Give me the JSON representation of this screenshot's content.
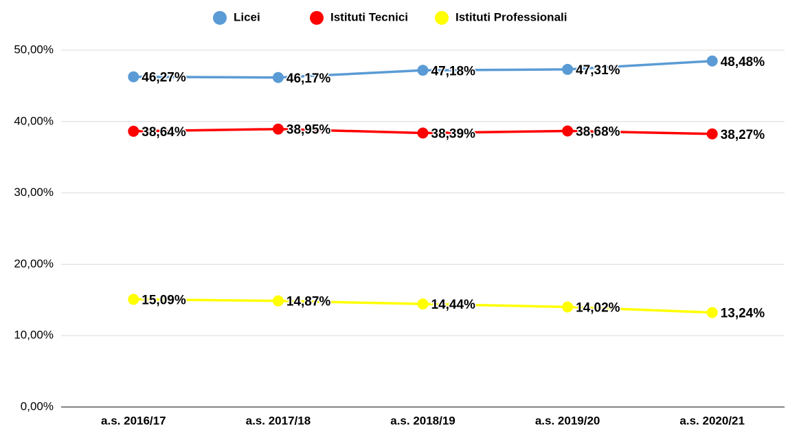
{
  "chart_data": {
    "type": "line",
    "categories": [
      "a.s. 2016/17",
      "a.s. 2017/18",
      "a.s. 2018/19",
      "a.s. 2019/20",
      "a.s. 2020/21"
    ],
    "series": [
      {
        "name": "Licei",
        "color": "#5b9bd5",
        "values": [
          46.27,
          46.17,
          47.18,
          47.31,
          48.48
        ],
        "value_labels": [
          "46,27%",
          "46,17%",
          "47,18%",
          "47,31%",
          "48,48%"
        ]
      },
      {
        "name": "Istituti Tecnici",
        "color": "#ff0000",
        "values": [
          38.64,
          38.95,
          38.39,
          38.68,
          38.27
        ],
        "value_labels": [
          "38,64%",
          "38,95%",
          "38,39%",
          "38,68%",
          "38,27%"
        ]
      },
      {
        "name": "Istituti Professionali",
        "color": "#ffff00",
        "values": [
          15.09,
          14.87,
          14.44,
          14.02,
          13.24
        ],
        "value_labels": [
          "15,09%",
          "14,87%",
          "14,44%",
          "14,02%",
          "13,24%"
        ]
      }
    ],
    "ylim": [
      0,
      50
    ],
    "yticks": [
      {
        "value": 0,
        "label": "0,00%"
      },
      {
        "value": 10,
        "label": "10,00%"
      },
      {
        "value": 20,
        "label": "20,00%"
      },
      {
        "value": 30,
        "label": "30,00%"
      },
      {
        "value": 40,
        "label": "40,00%"
      },
      {
        "value": 50,
        "label": "50,00%"
      }
    ],
    "grid": true,
    "legend": "top"
  }
}
